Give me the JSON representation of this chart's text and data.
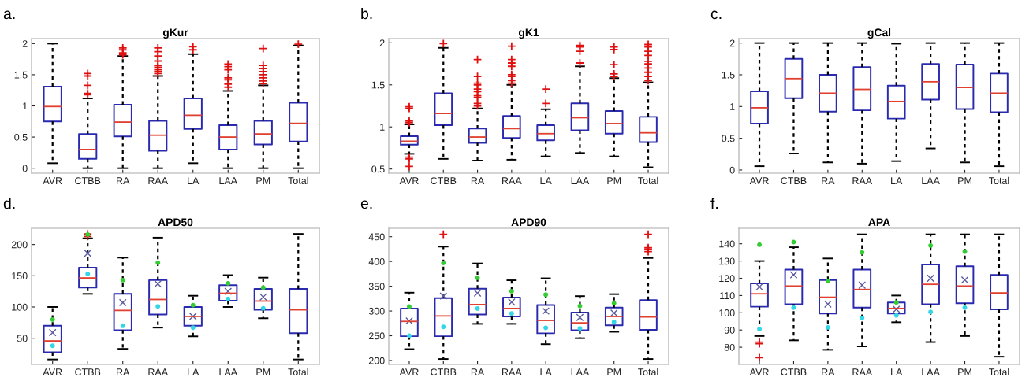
{
  "chart_data": [
    {
      "type": "box",
      "title": "gKur",
      "annotations": [
        "a."
      ],
      "color": "#2a2ab0",
      "categories": [
        "AVR",
        "CTBB",
        "RA",
        "RAA",
        "LA",
        "LAA",
        "PM",
        "Total"
      ],
      "ylim": [
        -0.08,
        2.08
      ],
      "yticks": [
        0,
        0.5,
        1,
        1.5,
        2
      ],
      "boxes": [
        {
          "low": 0.08,
          "q1": 0.75,
          "median": 0.99,
          "q3": 1.31,
          "high": 2.0
        },
        {
          "low": 0,
          "q1": 0.15,
          "median": 0.3,
          "q3": 0.55,
          "high": 1.12,
          "outliers": [
            1.18,
            1.2,
            1.33,
            1.48,
            1.52
          ]
        },
        {
          "low": 0,
          "q1": 0.51,
          "median": 0.74,
          "q3": 1.02,
          "high": 1.8,
          "outliers": [
            1.82,
            1.85,
            1.9,
            1.93
          ]
        },
        {
          "low": 0,
          "q1": 0.28,
          "median": 0.53,
          "q3": 0.76,
          "high": 1.48,
          "outliers": [
            1.52,
            1.55,
            1.58,
            1.62,
            1.65,
            1.72,
            1.8,
            1.87,
            1.93
          ]
        },
        {
          "low": 0.08,
          "q1": 0.63,
          "median": 0.85,
          "q3": 1.12,
          "high": 1.83,
          "outliers": [
            1.9,
            1.95
          ]
        },
        {
          "low": 0,
          "q1": 0.3,
          "median": 0.5,
          "q3": 0.69,
          "high": 1.24,
          "outliers": [
            1.3,
            1.35,
            1.42,
            1.45,
            1.58,
            1.63,
            1.67
          ]
        },
        {
          "low": 0,
          "q1": 0.38,
          "median": 0.55,
          "q3": 0.76,
          "high": 1.33,
          "outliers": [
            1.36,
            1.4,
            1.45,
            1.5,
            1.55,
            1.6,
            1.65,
            1.92
          ]
        },
        {
          "low": 0,
          "q1": 0.43,
          "median": 0.72,
          "q3": 1.05,
          "high": 1.97,
          "outliers": [
            1.99
          ]
        }
      ]
    },
    {
      "type": "box",
      "title": "gK1",
      "annotations": [
        "b."
      ],
      "color": "#2a2ab0",
      "categories": [
        "AVR",
        "CTBB",
        "RA",
        "RAA",
        "LA",
        "LAA",
        "PM",
        "Total"
      ],
      "ylim": [
        0.45,
        2.05
      ],
      "yticks": [
        0.5,
        1,
        1.5,
        2
      ],
      "boxes": [
        {
          "low": 0.68,
          "q1": 0.79,
          "median": 0.83,
          "q3": 0.89,
          "high": 1.03,
          "outliers": [
            0.53,
            0.62,
            0.64,
            1.05,
            1.07,
            1.22,
            1.24
          ]
        },
        {
          "low": 0.62,
          "q1": 1.02,
          "median": 1.16,
          "q3": 1.4,
          "high": 1.94,
          "outliers": [
            1.99
          ]
        },
        {
          "low": 0.6,
          "q1": 0.81,
          "median": 0.88,
          "q3": 0.98,
          "high": 1.22,
          "outliers": [
            1.25,
            1.28,
            1.35,
            1.37,
            1.42,
            1.45,
            1.5,
            1.52,
            1.6,
            1.8
          ]
        },
        {
          "low": 0.61,
          "q1": 0.87,
          "median": 0.98,
          "q3": 1.13,
          "high": 1.5,
          "outliers": [
            1.52,
            1.55,
            1.6,
            1.62,
            1.72,
            1.76,
            1.8,
            1.96
          ]
        },
        {
          "low": 0.65,
          "q1": 0.84,
          "median": 0.92,
          "q3": 1.02,
          "high": 1.21,
          "outliers": [
            1.28,
            1.45
          ]
        },
        {
          "low": 0.69,
          "q1": 0.96,
          "median": 1.11,
          "q3": 1.28,
          "high": 1.72,
          "outliers": [
            1.76,
            1.9,
            1.95,
            1.97
          ]
        },
        {
          "low": 0.65,
          "q1": 0.92,
          "median": 1.04,
          "q3": 1.19,
          "high": 1.58,
          "outliers": [
            1.6,
            1.63,
            1.74,
            1.92,
            1.95
          ]
        },
        {
          "low": 0.52,
          "q1": 0.82,
          "median": 0.93,
          "q3": 1.12,
          "high": 1.53,
          "outliers": [
            1.55,
            1.6,
            1.65,
            1.7,
            1.75,
            1.78,
            1.85,
            1.9,
            1.95,
            1.98
          ]
        }
      ]
    },
    {
      "type": "box",
      "title": "gCal",
      "annotations": [
        "c."
      ],
      "color": "#2a2ab0",
      "categories": [
        "AVR",
        "CTBB",
        "RA",
        "RAA",
        "LA",
        "LAA",
        "PM",
        "Total"
      ],
      "ylim": [
        -0.05,
        2.07
      ],
      "yticks": [
        0,
        0.5,
        1,
        1.5,
        2
      ],
      "boxes": [
        {
          "low": 0.06,
          "q1": 0.73,
          "median": 0.98,
          "q3": 1.24,
          "high": 2.0
        },
        {
          "low": 0.26,
          "q1": 1.13,
          "median": 1.44,
          "q3": 1.75,
          "high": 2.0
        },
        {
          "low": 0.12,
          "q1": 0.92,
          "median": 1.21,
          "q3": 1.5,
          "high": 2.0
        },
        {
          "low": 0.1,
          "q1": 0.94,
          "median": 1.27,
          "q3": 1.62,
          "high": 2.0
        },
        {
          "low": 0.14,
          "q1": 0.81,
          "median": 1.08,
          "q3": 1.33,
          "high": 1.99
        },
        {
          "low": 0.34,
          "q1": 1.11,
          "median": 1.39,
          "q3": 1.67,
          "high": 2.0
        },
        {
          "low": 0.12,
          "q1": 0.96,
          "median": 1.3,
          "q3": 1.66,
          "high": 2.0
        },
        {
          "low": 0.06,
          "q1": 0.91,
          "median": 1.21,
          "q3": 1.52,
          "high": 2.0
        }
      ]
    },
    {
      "type": "box",
      "title": "APD50",
      "annotations": [
        "d."
      ],
      "color": "#2a2ab0",
      "categories": [
        "AVR",
        "CTBB",
        "RA",
        "RAA",
        "LA",
        "LAA",
        "PM",
        "Total"
      ],
      "ylim": [
        8,
        226
      ],
      "yticks": [
        50,
        100,
        150,
        200
      ],
      "boxes": [
        {
          "low": 16,
          "q1": 27.5,
          "median": 45.7,
          "q3": 70,
          "high": 100,
          "mean": 59
        },
        {
          "low": 121,
          "q1": 131,
          "median": 146.5,
          "q3": 163,
          "high": 210,
          "mean": 186,
          "outliers": [
            213,
            217
          ]
        },
        {
          "low": 33,
          "q1": 63,
          "median": 94.5,
          "q3": 121,
          "high": 179,
          "mean": 107
        },
        {
          "low": 67,
          "q1": 88,
          "median": 112,
          "q3": 143,
          "high": 211,
          "mean": 137
        },
        {
          "low": 53,
          "q1": 70,
          "median": 85,
          "q3": 100,
          "high": 118,
          "mean": 85
        },
        {
          "low": 100,
          "q1": 110,
          "median": 122,
          "q3": 135,
          "high": 151,
          "mean": 125
        },
        {
          "low": 82,
          "q1": 95.5,
          "median": 109.5,
          "q3": 129,
          "high": 147,
          "mean": 116
        },
        {
          "low": 16,
          "q1": 58,
          "median": 95.5,
          "q3": 129,
          "high": 217
        }
      ],
      "series": [
        {
          "type": "scatter",
          "color": "#33cc33",
          "values": [
            80,
            216,
            143,
            171,
            103,
            138,
            131,
            null
          ]
        },
        {
          "type": "scatter",
          "color": "#33d6e6",
          "values": [
            38,
            153,
            70,
            101,
            67,
            113,
            98,
            null
          ]
        }
      ]
    },
    {
      "type": "box",
      "title": "APD90",
      "annotations": [
        "e."
      ],
      "color": "#2a2ab0",
      "categories": [
        "AVR",
        "CTBB",
        "RA",
        "RAA",
        "LA",
        "LAA",
        "PM",
        "Total"
      ],
      "ylim": [
        192,
        467
      ],
      "yticks": [
        200,
        250,
        300,
        350,
        400,
        450
      ],
      "boxes": [
        {
          "low": 223,
          "q1": 249,
          "median": 279,
          "q3": 305,
          "high": 337,
          "mean": 280
        },
        {
          "low": 203,
          "q1": 249,
          "median": 290,
          "q3": 326,
          "high": 430,
          "mean": 330,
          "outliers": [
            455
          ]
        },
        {
          "low": 274,
          "q1": 293,
          "median": 313,
          "q3": 345,
          "high": 396,
          "mean": 336
        },
        {
          "low": 274,
          "q1": 289,
          "median": 305,
          "q3": 327,
          "high": 362,
          "mean": 318
        },
        {
          "low": 233,
          "q1": 255,
          "median": 281,
          "q3": 312,
          "high": 366,
          "mean": 300
        },
        {
          "low": 245,
          "q1": 261,
          "median": 276,
          "q3": 297,
          "high": 330,
          "mean": 287
        },
        {
          "low": 258,
          "q1": 271,
          "median": 289,
          "q3": 307,
          "high": 334,
          "mean": 296
        },
        {
          "low": 203,
          "q1": 262,
          "median": 288,
          "q3": 322,
          "high": 407,
          "outliers": [
            420,
            425,
            428,
            455
          ]
        }
      ],
      "series": [
        {
          "type": "scatter",
          "color": "#33cc33",
          "values": [
            309,
            397,
            367,
            340,
            333,
            310,
            316,
            null
          ]
        },
        {
          "type": "scatter",
          "color": "#33d6e6",
          "values": [
            250,
            268,
            305,
            295,
            266,
            265,
            278,
            null
          ]
        }
      ]
    },
    {
      "type": "box",
      "title": "APA",
      "annotations": [
        "f."
      ],
      "color": "#2a2ab0",
      "categories": [
        "AVR",
        "CTBB",
        "RA",
        "RAA",
        "LA",
        "LAA",
        "PM",
        "Total"
      ],
      "ylim": [
        70,
        149
      ],
      "yticks": [
        80,
        90,
        100,
        110,
        120,
        130,
        140
      ],
      "boxes": [
        {
          "low": 86.5,
          "q1": 103.5,
          "median": 111,
          "q3": 117,
          "high": 130,
          "mean": 115,
          "outliers": [
            74,
            82,
            83
          ]
        },
        {
          "low": 84,
          "q1": 105,
          "median": 115.5,
          "q3": 125,
          "high": 138,
          "mean": 122
        },
        {
          "low": 78.5,
          "q1": 99.5,
          "median": 109,
          "q3": 119,
          "high": 131.5,
          "mean": 105
        },
        {
          "low": 80.5,
          "q1": 103,
          "median": 113.5,
          "q3": 125,
          "high": 145.5,
          "mean": 116
        },
        {
          "low": 94.5,
          "q1": 99.5,
          "median": 102.5,
          "q3": 106,
          "high": 110,
          "mean": 102
        },
        {
          "low": 83,
          "q1": 105,
          "median": 116.5,
          "q3": 128,
          "high": 145.5,
          "mean": 120
        },
        {
          "low": 86.5,
          "q1": 105.5,
          "median": 115.5,
          "q3": 127,
          "high": 145.5,
          "mean": 119
        },
        {
          "low": 74.5,
          "q1": 102,
          "median": 111.5,
          "q3": 122,
          "high": 145.5
        }
      ],
      "series": [
        {
          "type": "scatter",
          "color": "#33cc33",
          "values": [
            139.5,
            141,
            118.5,
            135,
            106,
            139,
            135.5,
            null
          ]
        },
        {
          "type": "scatter",
          "color": "#33d6e6",
          "values": [
            90.5,
            103,
            91.5,
            97,
            98.5,
            100.5,
            103,
            null
          ]
        }
      ]
    }
  ]
}
